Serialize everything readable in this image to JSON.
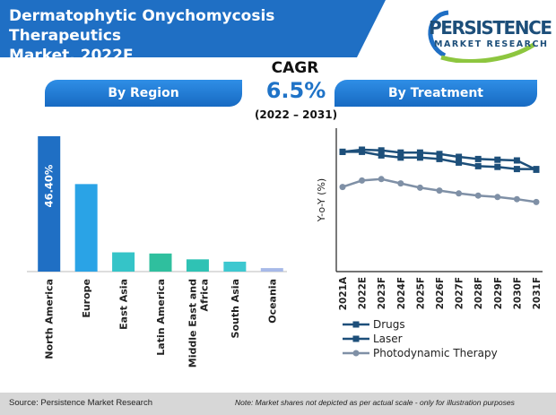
{
  "header": {
    "title_line1": "Dermatophytic Onychomycosis Therapeutics",
    "title_line2": "Market, 2022E"
  },
  "logo": {
    "name": "PERSISTENCE",
    "tagline": "MARKET RESEARCH"
  },
  "cagr": {
    "label": "CAGR",
    "value": "6.5%",
    "period": "(2022 – 2031)"
  },
  "sections": {
    "region_title": "By Region",
    "treatment_title": "By Treatment"
  },
  "colors": {
    "banner": "#1f6fc4",
    "region_bars": [
      "#1f6fc4",
      "#2aa3e6",
      "#35c4c8",
      "#2fbf9e",
      "#2fc2b4",
      "#3dc8d0",
      "#a7b9e8"
    ],
    "drugs": "#1d4f7a",
    "laser": "#1d4f7a",
    "pdt": "#7f90a6"
  },
  "chart_data": [
    {
      "type": "bar",
      "title": "By Region",
      "categories": [
        "North America",
        "Europe",
        "East Asia",
        "Latin America",
        "Middle East and Africa",
        "South Asia",
        "Oceania"
      ],
      "values": [
        46.4,
        30.0,
        6.6,
        6.2,
        4.2,
        3.4,
        1.2
      ],
      "data_labels": [
        "46.40%",
        "",
        "",
        "",
        "",
        "",
        ""
      ],
      "ylim": [
        0,
        50
      ]
    },
    {
      "type": "line",
      "title": "By Treatment",
      "ylabel": "Y-o-Y (%)",
      "x": [
        "2021A",
        "2022E",
        "2023F",
        "2024F",
        "2025F",
        "2026F",
        "2027F",
        "2028F",
        "2029F",
        "2030F",
        "2031F"
      ],
      "series": [
        {
          "name": "Drugs",
          "values": [
            8.35,
            8.5,
            8.45,
            8.3,
            8.3,
            8.2,
            8.0,
            7.85,
            7.8,
            7.75,
            7.1
          ]
        },
        {
          "name": "Laser",
          "values": [
            8.35,
            8.35,
            8.1,
            7.95,
            7.95,
            7.85,
            7.6,
            7.35,
            7.3,
            7.15,
            7.15
          ]
        },
        {
          "name": "Photodynamic Therapy",
          "values": [
            5.9,
            6.35,
            6.45,
            6.15,
            5.85,
            5.65,
            5.45,
            5.3,
            5.2,
            5.05,
            4.85
          ]
        }
      ],
      "ylim": [
        0,
        10
      ],
      "legend_position": "bottom-left"
    }
  ],
  "footer": {
    "source": "Source: Persistence Market Research",
    "note": "Note: Market shares not depicted as per actual scale - only for illustration purposes"
  }
}
